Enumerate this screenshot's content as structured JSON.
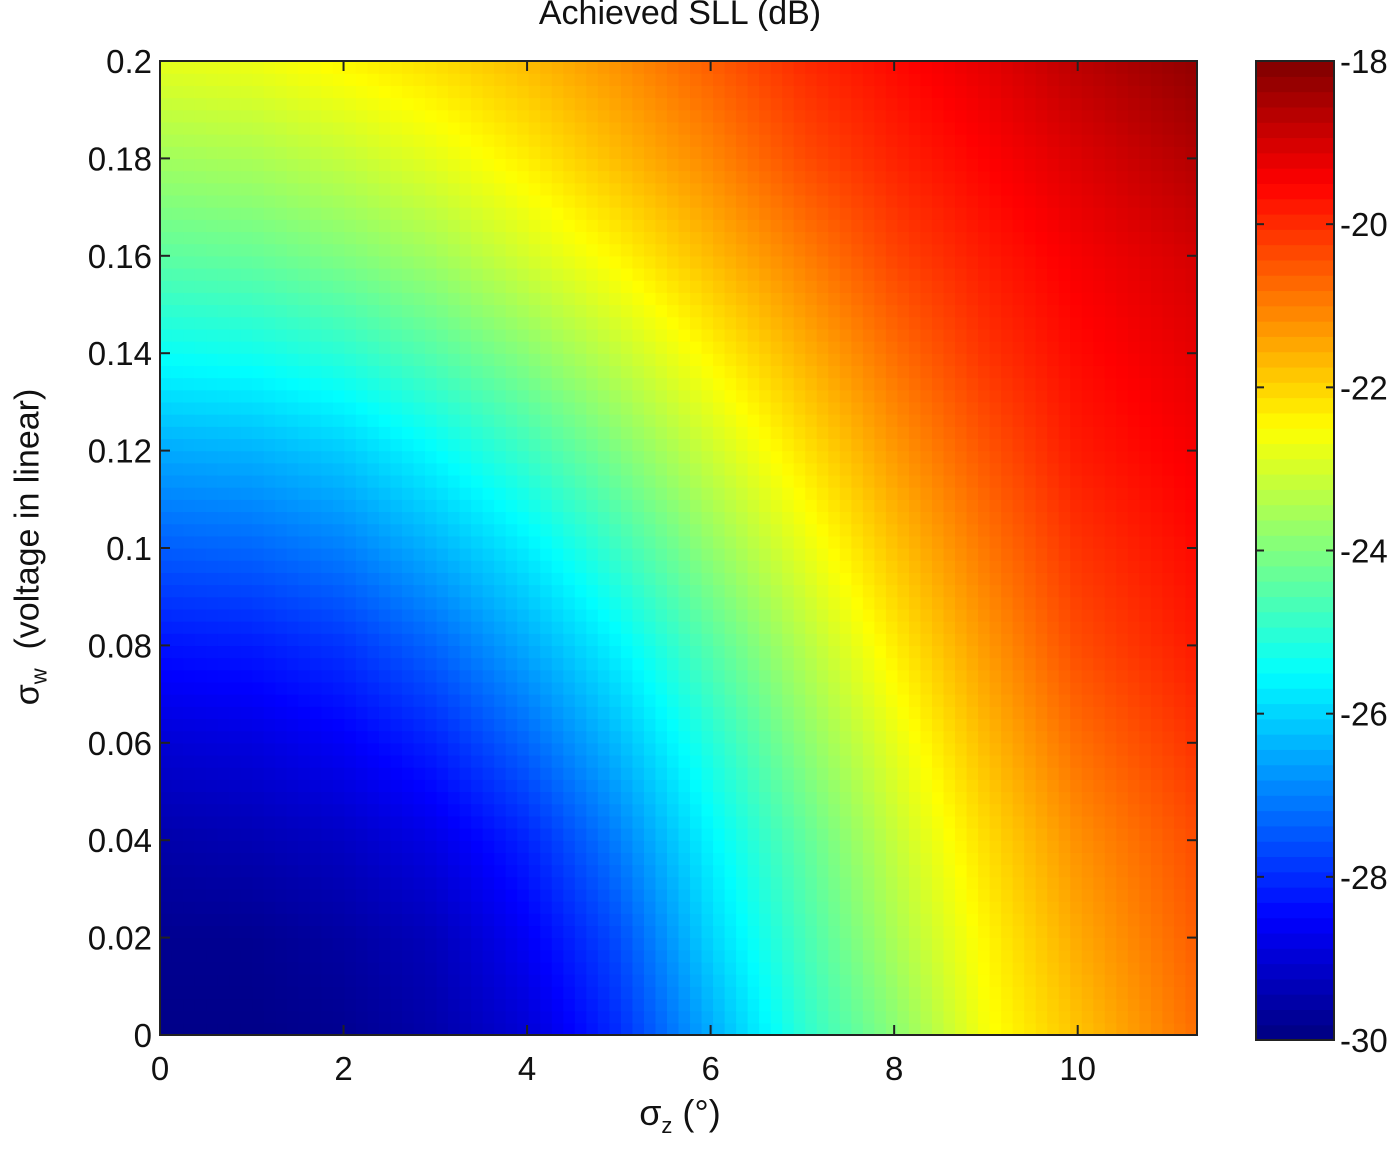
{
  "chart_data": {
    "type": "heatmap",
    "title": "Achieved SLL (dB)",
    "xlabel": {
      "symbol": "σ",
      "sub": "z",
      "rest": " (°)"
    },
    "ylabel": {
      "symbol": "σ",
      "sub": "w",
      "rest": "  (voltage in linear)"
    },
    "xlim": [
      0,
      11.3
    ],
    "ylim": [
      0,
      0.2
    ],
    "x_ticks": [
      0,
      2,
      4,
      6,
      8,
      10
    ],
    "x_tick_labels": [
      "0",
      "2",
      "4",
      "6",
      "8",
      "10"
    ],
    "y_ticks": [
      0,
      0.02,
      0.04,
      0.06,
      0.08,
      0.1,
      0.12,
      0.14,
      0.16,
      0.18,
      0.2
    ],
    "y_tick_labels": [
      "0",
      "0.02",
      "0.04",
      "0.06",
      "0.08",
      "0.1",
      "0.12",
      "0.14",
      "0.16",
      "0.18",
      "0.2"
    ],
    "colorbar": {
      "range": [
        -30,
        -18
      ],
      "ticks": [
        -30,
        -28,
        -26,
        -24,
        -22,
        -20,
        -18
      ],
      "tick_labels": [
        "-30",
        "-28",
        "-26",
        "-24",
        "-22",
        "-20",
        "-18"
      ],
      "colormap": "jet"
    },
    "x_grid": [
      0,
      1,
      2,
      3,
      4,
      5,
      6,
      7,
      8,
      9,
      10,
      11.3
    ],
    "y_grid": [
      0,
      0.02,
      0.04,
      0.06,
      0.08,
      0.1,
      0.12,
      0.14,
      0.16,
      0.18,
      0.2
    ],
    "values": [
      [
        -29.9,
        -29.9,
        -29.8,
        -29.5,
        -29.0,
        -28.0,
        -26.5,
        -25.0,
        -23.9,
        -22.6,
        -21.8,
        -20.8
      ],
      [
        -29.8,
        -29.8,
        -29.6,
        -29.3,
        -28.6,
        -27.6,
        -26.0,
        -24.7,
        -23.5,
        -22.4,
        -21.5,
        -20.6
      ],
      [
        -29.5,
        -29.4,
        -29.2,
        -28.8,
        -28.1,
        -27.0,
        -25.6,
        -24.4,
        -23.2,
        -22.1,
        -21.2,
        -20.4
      ],
      [
        -29.0,
        -28.9,
        -28.6,
        -28.1,
        -27.3,
        -26.3,
        -25.1,
        -23.9,
        -22.8,
        -21.7,
        -20.8,
        -20.1
      ],
      [
        -28.3,
        -28.2,
        -27.9,
        -27.3,
        -26.5,
        -25.6,
        -24.5,
        -23.4,
        -22.3,
        -21.3,
        -20.4,
        -19.8
      ],
      [
        -27.4,
        -27.3,
        -27.0,
        -26.4,
        -25.7,
        -24.8,
        -23.8,
        -22.8,
        -21.8,
        -20.9,
        -20.1,
        -19.6
      ],
      [
        -26.5,
        -26.4,
        -26.1,
        -25.5,
        -24.8,
        -24.0,
        -23.1,
        -22.2,
        -21.3,
        -20.5,
        -19.8,
        -19.4
      ],
      [
        -25.4,
        -25.3,
        -25.0,
        -24.5,
        -23.9,
        -23.2,
        -22.4,
        -21.6,
        -20.8,
        -20.1,
        -19.6,
        -19.2
      ],
      [
        -24.4,
        -24.3,
        -24.0,
        -23.6,
        -23.0,
        -22.4,
        -21.7,
        -21.0,
        -20.3,
        -19.8,
        -19.4,
        -19.0
      ],
      [
        -23.6,
        -23.5,
        -23.2,
        -22.8,
        -22.3,
        -21.7,
        -21.1,
        -20.4,
        -19.9,
        -19.5,
        -19.1,
        -18.6
      ],
      [
        -22.8,
        -22.7,
        -22.4,
        -22.1,
        -21.7,
        -21.2,
        -20.6,
        -20.0,
        -19.6,
        -19.2,
        -18.7,
        -18.2
      ]
    ]
  }
}
